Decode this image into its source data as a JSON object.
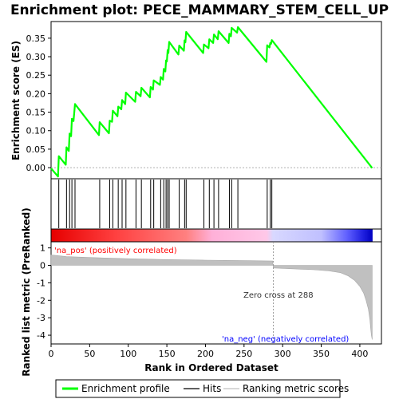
{
  "chart_data": {
    "type": "line",
    "title": "Enrichment plot: PECE_MAMMARY_STEM_CELL_UP",
    "xlabel": "Rank in Ordered Dataset",
    "ylabel_top": "Enrichment score (ES)",
    "ylabel_bottom": "Ranked list metric (PreRanked)",
    "xlim": [
      0,
      428
    ],
    "x_ticks": [
      0,
      50,
      100,
      150,
      200,
      250,
      300,
      350,
      400
    ],
    "es_ylim": [
      -0.03,
      0.395
    ],
    "es_ticks": [
      0.0,
      0.05,
      0.1,
      0.15,
      0.2,
      0.25,
      0.3,
      0.35
    ],
    "es_tick_labels": [
      "0.00",
      "0.05",
      "0.10",
      "0.15",
      "0.20",
      "0.25",
      "0.30",
      "0.35"
    ],
    "metric_ylim": [
      -4.5,
      1.35
    ],
    "metric_ticks": [
      1,
      0,
      -1,
      -2,
      -3,
      -4
    ],
    "series": [
      {
        "name": "Enrichment profile",
        "color": "#00ff00",
        "x": [
          0,
          9,
          10,
          19,
          20,
          23,
          24,
          26,
          27,
          29,
          31,
          62,
          63,
          75,
          76,
          79,
          80,
          86,
          87,
          91,
          92,
          96,
          97,
          109,
          110,
          116,
          117,
          128,
          129,
          132,
          133,
          141,
          142,
          145,
          146,
          148,
          149,
          150,
          151,
          152,
          153,
          165,
          166,
          172,
          173,
          174,
          175,
          197,
          198,
          204,
          205,
          210,
          211,
          216,
          217,
          230,
          231,
          233,
          234,
          241,
          242,
          279,
          280,
          283,
          284,
          285,
          286,
          416
        ],
        "y": [
          -0.002,
          -0.024,
          0.031,
          0.008,
          0.055,
          0.045,
          0.092,
          0.085,
          0.132,
          0.126,
          0.172,
          0.088,
          0.123,
          0.093,
          0.127,
          0.124,
          0.154,
          0.139,
          0.165,
          0.158,
          0.183,
          0.172,
          0.203,
          0.178,
          0.205,
          0.193,
          0.216,
          0.19,
          0.218,
          0.211,
          0.236,
          0.224,
          0.245,
          0.238,
          0.267,
          0.26,
          0.29,
          0.287,
          0.318,
          0.31,
          0.34,
          0.306,
          0.33,
          0.316,
          0.344,
          0.339,
          0.367,
          0.31,
          0.333,
          0.323,
          0.347,
          0.337,
          0.36,
          0.347,
          0.369,
          0.337,
          0.362,
          0.355,
          0.378,
          0.365,
          0.38,
          0.286,
          0.331,
          0.325,
          0.337,
          0.335,
          0.345,
          -0.001
        ]
      }
    ],
    "hits": [
      10,
      20,
      24,
      27,
      31,
      63,
      76,
      80,
      87,
      92,
      97,
      110,
      117,
      129,
      133,
      142,
      146,
      149,
      151,
      153,
      166,
      173,
      175,
      198,
      205,
      211,
      217,
      231,
      234,
      242,
      280,
      284,
      286
    ],
    "metric": {
      "name": "Ranking metric scores",
      "x": [
        0,
        20,
        50,
        100,
        150,
        200,
        250,
        287,
        288,
        300,
        340,
        360,
        375,
        385,
        393,
        400,
        405,
        408,
        411,
        413,
        414,
        415,
        416
      ],
      "y": [
        0.6,
        0.5,
        0.45,
        0.38,
        0.33,
        0.3,
        0.27,
        0.25,
        -0.15,
        -0.17,
        -0.25,
        -0.32,
        -0.42,
        -0.6,
        -0.85,
        -1.2,
        -1.6,
        -2.0,
        -2.5,
        -3.1,
        -3.6,
        -4.0,
        -4.25
      ]
    },
    "zero_cross": 288,
    "total_ranks": 416,
    "annotations": {
      "pos_label": "'na_pos' (positively correlated)",
      "neg_label": "'na_neg' (negatively correlated)",
      "zero_cross_label": "Zero cross at 288"
    },
    "legend": {
      "placement": "bottom",
      "items": [
        {
          "label": "Enrichment profile",
          "color": "#00ff00"
        },
        {
          "label": "Hits",
          "color": "#000000"
        },
        {
          "label": "Ranking metric scores",
          "color": "#c0c0c0"
        }
      ]
    },
    "colors": {
      "profile": "#00ff00",
      "pos_text": "#ff0000",
      "neg_text": "#0000ff",
      "metric_fill": "#c0c0c0"
    }
  }
}
